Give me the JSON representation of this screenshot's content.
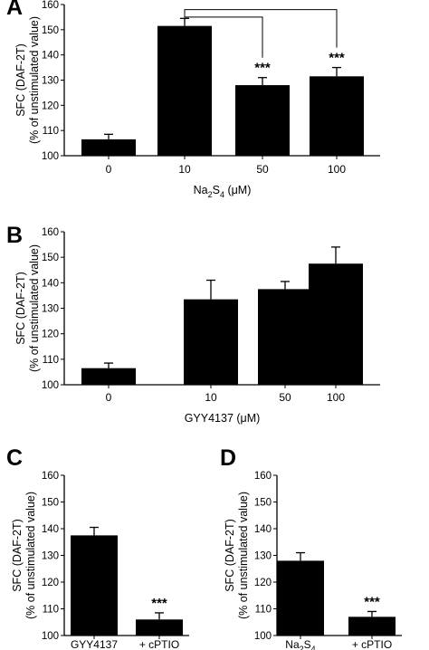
{
  "chart_data": [
    {
      "panel": "A",
      "type": "bar",
      "categories": [
        "0",
        "10",
        "50",
        "100"
      ],
      "values": [
        106.5,
        151.5,
        128,
        131.5
      ],
      "errors": [
        2,
        3,
        3,
        3.5
      ],
      "ylabel_lines": [
        "SFC (DAF-2T)",
        "(% of unstimulated value)"
      ],
      "xlabel": {
        "main": "Na",
        "sub1": "2",
        "mid": "S",
        "sub2": "4",
        "unit": " (μM)"
      },
      "ylim": [
        100,
        160
      ],
      "yticks": [
        "100",
        "110",
        "120",
        "130",
        "140",
        "150",
        "160"
      ],
      "annotations": [
        "",
        "",
        "***",
        "***"
      ],
      "comparisons": [
        [
          1,
          2
        ],
        [
          1,
          3
        ]
      ]
    },
    {
      "panel": "B",
      "type": "bar",
      "categories": [
        "0",
        "10",
        "50",
        "100"
      ],
      "values": [
        106.5,
        133.5,
        137.5,
        147.5
      ],
      "errors": [
        2,
        7.5,
        3,
        6.5
      ],
      "ylabel_lines": [
        "SFC (DAF-2T)",
        "(% of unstimulated value)"
      ],
      "xlabel": {
        "main": "GYY4137 (μM)",
        "sub1": "",
        "mid": "",
        "sub2": "",
        "unit": ""
      },
      "ylim": [
        100,
        160
      ],
      "yticks": [
        "100",
        "110",
        "120",
        "130",
        "140",
        "150",
        "160"
      ],
      "annotations": [
        "",
        "",
        "",
        ""
      ],
      "comparisons": []
    },
    {
      "panel": "C",
      "type": "bar",
      "categories": [
        "GYY4137",
        "+ cPTIO"
      ],
      "values": [
        137.5,
        106
      ],
      "errors": [
        3,
        2.5
      ],
      "ylabel_lines": [
        "SFC (DAF-2T)",
        "(% of unstimulated value)"
      ],
      "ylim": [
        100,
        160
      ],
      "yticks": [
        "100",
        "110",
        "120",
        "130",
        "140",
        "150",
        "160"
      ],
      "annotations": [
        "",
        "***"
      ]
    },
    {
      "panel": "D",
      "type": "bar",
      "categories": [
        "Na2S4",
        "+ cPTIO"
      ],
      "category_parts": [
        {
          "main": "Na",
          "sub1": "2",
          "mid": "S",
          "sub2": "4"
        },
        null
      ],
      "values": [
        128,
        107
      ],
      "errors": [
        3,
        2
      ],
      "ylabel_lines": [
        "SFC (DAF-2T)",
        "(% of unstimulated value)"
      ],
      "ylim": [
        100,
        160
      ],
      "yticks": [
        "100",
        "110",
        "120",
        "130",
        "140",
        "150",
        "160"
      ],
      "annotations": [
        "",
        "***"
      ]
    }
  ],
  "colors": {
    "bar": "#000000",
    "axis": "#000000",
    "background": "#ffffff"
  }
}
